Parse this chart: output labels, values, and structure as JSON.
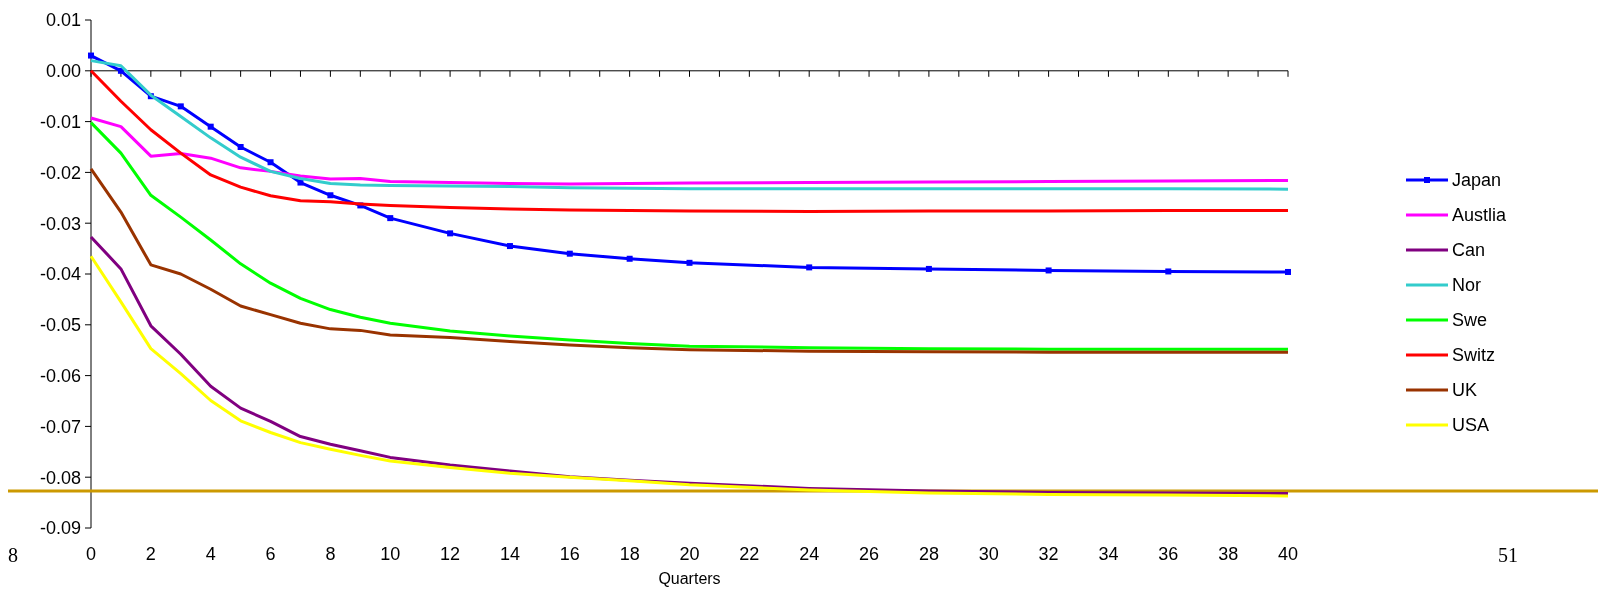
{
  "chart_data": {
    "type": "line",
    "xlabel": "Quarters",
    "x": [
      0,
      1,
      2,
      3,
      4,
      5,
      6,
      7,
      8,
      9,
      10,
      12,
      14,
      16,
      18,
      20,
      24,
      28,
      32,
      36,
      40
    ],
    "series": [
      {
        "name": "Japan",
        "color": "#0000ff",
        "marker": "square",
        "values": [
          0.003,
          0.0,
          -0.005,
          -0.007,
          -0.011,
          -0.015,
          -0.018,
          -0.022,
          -0.0245,
          -0.0265,
          -0.029,
          -0.032,
          -0.0345,
          -0.036,
          -0.037,
          -0.0378,
          -0.0387,
          -0.039,
          -0.0393,
          -0.0395,
          -0.0396
        ]
      },
      {
        "name": "Austlia",
        "color": "#ff00ff",
        "values": [
          -0.0093,
          -0.011,
          -0.0168,
          -0.0163,
          -0.0172,
          -0.0191,
          -0.0198,
          -0.0207,
          -0.0213,
          -0.0212,
          -0.0218,
          -0.022,
          -0.0222,
          -0.0223,
          -0.0222,
          -0.0221,
          -0.022,
          -0.0219,
          -0.0218,
          -0.0217,
          -0.0216
        ]
      },
      {
        "name": "Can",
        "color": "#800080",
        "values": [
          -0.0327,
          -0.039,
          -0.0502,
          -0.0558,
          -0.0621,
          -0.0664,
          -0.069,
          -0.072,
          -0.0735,
          -0.0748,
          -0.0761,
          -0.0776,
          -0.0788,
          -0.0799,
          -0.0806,
          -0.0812,
          -0.0822,
          -0.0827,
          -0.083,
          -0.0831,
          -0.0832
        ]
      },
      {
        "name": "Nor",
        "color": "#33cccc",
        "values": [
          0.002,
          0.001,
          -0.0048,
          -0.009,
          -0.0132,
          -0.017,
          -0.0198,
          -0.0212,
          -0.0222,
          -0.0225,
          -0.0226,
          -0.0227,
          -0.0228,
          -0.023,
          -0.0231,
          -0.0232,
          -0.0232,
          -0.0232,
          -0.0232,
          -0.0232,
          -0.0233
        ]
      },
      {
        "name": "Swe",
        "color": "#00ff00",
        "values": [
          -0.0102,
          -0.0162,
          -0.0245,
          -0.0288,
          -0.0333,
          -0.038,
          -0.0418,
          -0.0448,
          -0.047,
          -0.0485,
          -0.0497,
          -0.0512,
          -0.0522,
          -0.053,
          -0.0537,
          -0.0542,
          -0.0545,
          -0.0547,
          -0.0548,
          -0.0548,
          -0.0548
        ]
      },
      {
        "name": "Switz",
        "color": "#ff0000",
        "values": [
          0,
          -0.006,
          -0.0116,
          -0.0162,
          -0.0205,
          -0.0229,
          -0.0246,
          -0.0256,
          -0.0258,
          -0.0262,
          -0.0265,
          -0.0269,
          -0.0272,
          -0.0274,
          -0.0275,
          -0.0276,
          -0.0277,
          -0.0276,
          -0.0276,
          -0.0275,
          -0.0275
        ]
      },
      {
        "name": "UK",
        "color": "#993300",
        "values": [
          -0.0193,
          -0.0278,
          -0.0382,
          -0.04,
          -0.043,
          -0.0463,
          -0.048,
          -0.0497,
          -0.0508,
          -0.0511,
          -0.052,
          -0.0525,
          -0.0533,
          -0.054,
          -0.0545,
          -0.0549,
          -0.0552,
          -0.0553,
          -0.0554,
          -0.0554,
          -0.0554
        ]
      },
      {
        "name": "USA",
        "color": "#ffff00",
        "values": [
          -0.0365,
          -0.0455,
          -0.0547,
          -0.0596,
          -0.0649,
          -0.0689,
          -0.0712,
          -0.0732,
          -0.0745,
          -0.0757,
          -0.0768,
          -0.0781,
          -0.0792,
          -0.08,
          -0.0807,
          -0.0815,
          -0.0825,
          -0.0831,
          -0.0834,
          -0.0835,
          -0.0837
        ]
      }
    ],
    "xlim": [
      0,
      40
    ],
    "xticks": [
      0,
      {
        "value": 1,
        "label": null
      },
      2,
      {
        "value": 3,
        "label": null
      },
      4,
      {
        "value": 5,
        "label": null
      },
      6,
      {
        "value": 7,
        "label": null
      },
      8,
      {
        "value": 9,
        "label": null
      },
      10,
      {
        "value": 11,
        "label": null
      },
      12,
      {
        "value": 13,
        "label": null
      },
      14,
      {
        "value": 15,
        "label": null
      },
      16,
      {
        "value": 17,
        "label": null
      },
      18,
      {
        "value": 19,
        "label": null
      },
      20,
      {
        "value": 21,
        "label": null
      },
      22,
      {
        "value": 23,
        "label": null
      },
      24,
      {
        "value": 25,
        "label": null
      },
      26,
      {
        "value": 27,
        "label": null
      },
      28,
      {
        "value": 29,
        "label": null
      },
      30,
      {
        "value": 31,
        "label": null
      },
      32,
      {
        "value": 33,
        "label": null
      },
      34,
      {
        "value": 35,
        "label": null
      },
      36,
      {
        "value": 37,
        "label": null
      },
      38,
      {
        "value": 39,
        "label": null
      },
      40
    ],
    "ylim": [
      -0.09,
      0.01
    ],
    "yticks": [
      {
        "value": 0.01,
        "label": "0.01"
      },
      {
        "value": 0,
        "label": "0.00"
      },
      {
        "value": -0.01,
        "label": "-0.01"
      },
      {
        "value": -0.02,
        "label": "-0.02"
      },
      {
        "value": -0.03,
        "label": "-0.03"
      },
      {
        "value": -0.04,
        "label": "-0.04"
      },
      {
        "value": -0.05,
        "label": "-0.05"
      },
      {
        "value": -0.06,
        "label": "-0.06"
      },
      {
        "value": -0.07,
        "label": "-0.07"
      },
      {
        "value": -0.08,
        "label": "-0.08"
      },
      {
        "value": -0.09,
        "label": "-0.09"
      }
    ],
    "ref_lines": [
      {
        "axis": "y",
        "value": -0.0827,
        "color": "#cc9900"
      }
    ],
    "legend": "right",
    "annotations": [
      "8",
      "51"
    ]
  }
}
